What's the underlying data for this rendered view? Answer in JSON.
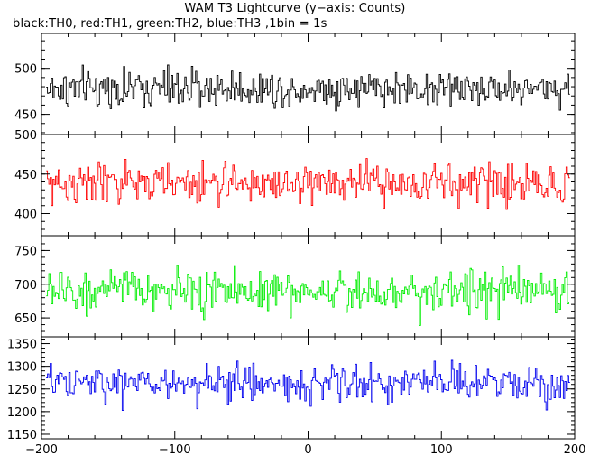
{
  "title": "WAM T3 Lightcurve (y−axis: Counts)",
  "subtitle": "black:TH0, red:TH1, green:TH2, blue:TH3 ,1bin = 1s",
  "chart_data": [
    {
      "type": "line",
      "name": "TH0",
      "color": "#000000",
      "xlim": [
        -200,
        200
      ],
      "ylim": [
        428,
        538
      ],
      "yticks": [
        450,
        500
      ],
      "mean": 478,
      "noise": 16,
      "x_ticks": [
        -200,
        -100,
        0,
        100,
        200
      ]
    },
    {
      "type": "line",
      "name": "TH1",
      "color": "#ff0000",
      "xlim": [
        -200,
        200
      ],
      "ylim": [
        372,
        500
      ],
      "yticks": [
        400,
        450,
        500
      ],
      "mean": 438,
      "noise": 20,
      "x_ticks": [
        -200,
        -100,
        0,
        100,
        200
      ]
    },
    {
      "type": "line",
      "name": "TH2",
      "color": "#00ee00",
      "xlim": [
        -200,
        200
      ],
      "ylim": [
        622,
        772
      ],
      "yticks": [
        650,
        700,
        750
      ],
      "mean": 690,
      "noise": 24,
      "x_ticks": [
        -200,
        -100,
        0,
        100,
        200
      ]
    },
    {
      "type": "line",
      "name": "TH3",
      "color": "#0000ee",
      "xlim": [
        -200,
        200
      ],
      "ylim": [
        1140,
        1365
      ],
      "yticks": [
        1150,
        1200,
        1250,
        1300,
        1350
      ],
      "mean": 1262,
      "noise": 32,
      "x_ticks": [
        -200,
        -100,
        0,
        100,
        200
      ]
    }
  ]
}
